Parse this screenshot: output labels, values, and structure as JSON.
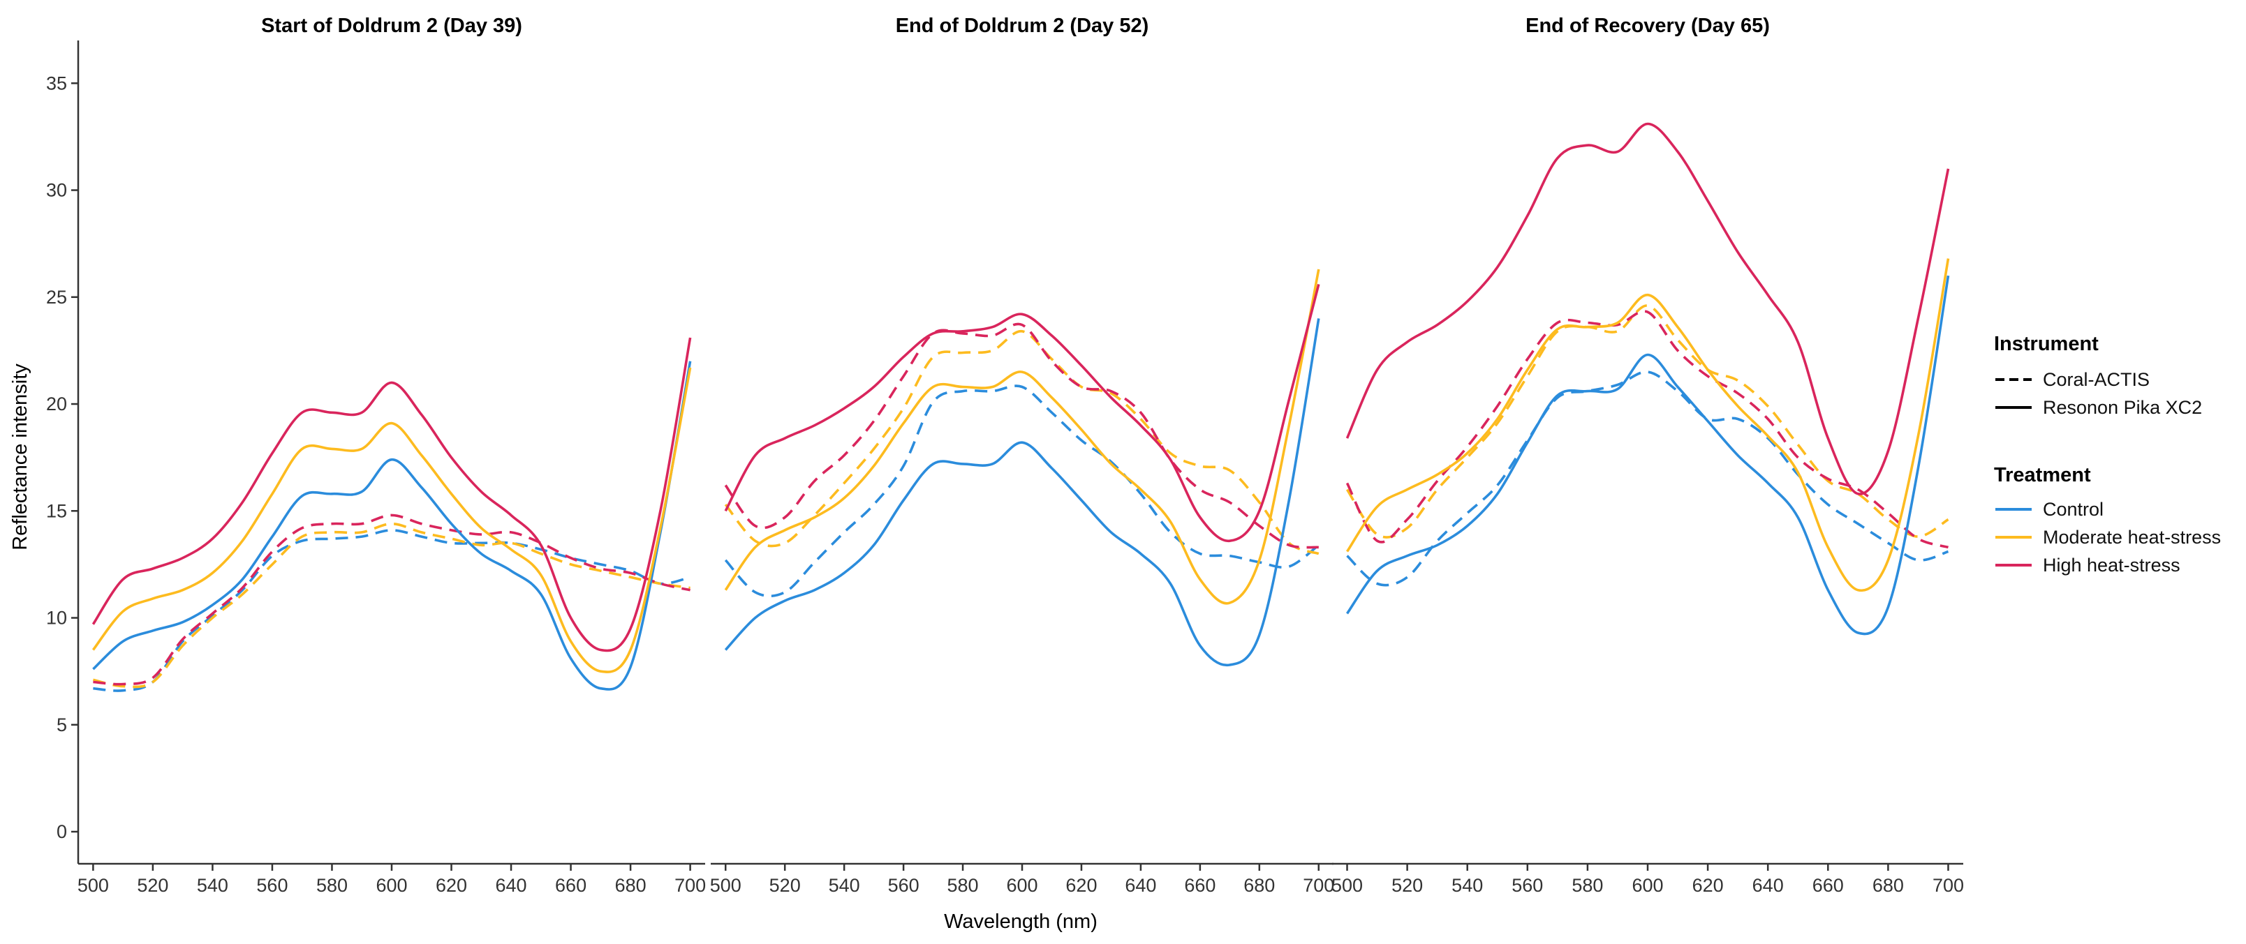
{
  "chart_data": {
    "type": "line",
    "xlabel": "Wavelength (nm)",
    "ylabel": "Reflectance intensity",
    "xlim": [
      495,
      705
    ],
    "ylim": [
      -1.5,
      37
    ],
    "xticks": [
      500,
      520,
      540,
      560,
      580,
      600,
      620,
      640,
      660,
      680,
      700
    ],
    "yticks": [
      0,
      5,
      10,
      15,
      20,
      25,
      30,
      35
    ],
    "grid": false,
    "legend_position": "right",
    "instrument_legend": {
      "title": "Instrument",
      "entries": [
        {
          "label": "Coral-ACTIS",
          "dash": "dashed"
        },
        {
          "label": "Resonon Pika XC2",
          "dash": "solid"
        }
      ]
    },
    "treatment_legend": {
      "title": "Treatment",
      "entries": [
        {
          "label": "Control",
          "color": "#2B8CDC"
        },
        {
          "label": "Moderate heat-stress",
          "color": "#FDBB1F"
        },
        {
          "label": "High heat-stress",
          "color": "#D9255C"
        }
      ]
    },
    "x": [
      500,
      510,
      520,
      530,
      540,
      550,
      560,
      570,
      580,
      590,
      600,
      610,
      620,
      630,
      640,
      650,
      660,
      670,
      680,
      690,
      700
    ],
    "panels": [
      {
        "title": "Start of Doldrum 2 (Day 39)",
        "series": [
          {
            "instrument": "Resonon Pika XC2",
            "treatment": "Control",
            "values": [
              7.6,
              8.9,
              9.4,
              9.8,
              10.6,
              11.8,
              13.8,
              15.7,
              15.8,
              15.9,
              17.4,
              16.1,
              14.4,
              13.0,
              12.2,
              11.1,
              8.1,
              6.7,
              7.7,
              14.0,
              22.0
            ]
          },
          {
            "instrument": "Resonon Pika XC2",
            "treatment": "Moderate heat-stress",
            "values": [
              8.5,
              10.3,
              10.9,
              11.3,
              12.1,
              13.6,
              15.8,
              17.9,
              17.9,
              17.9,
              19.1,
              17.6,
              15.8,
              14.2,
              13.2,
              12.0,
              8.9,
              7.5,
              8.5,
              14.2,
              21.7
            ]
          },
          {
            "instrument": "Resonon Pika XC2",
            "treatment": "High heat-stress",
            "values": [
              9.7,
              11.8,
              12.3,
              12.8,
              13.7,
              15.4,
              17.7,
              19.6,
              19.6,
              19.6,
              21.0,
              19.5,
              17.5,
              15.9,
              14.8,
              13.4,
              10.0,
              8.5,
              9.5,
              15.0,
              23.1
            ]
          },
          {
            "instrument": "Coral-ACTIS",
            "treatment": "Control",
            "values": [
              6.7,
              6.6,
              7.0,
              8.9,
              10.1,
              11.3,
              12.9,
              13.6,
              13.7,
              13.8,
              14.1,
              13.8,
              13.5,
              13.5,
              13.5,
              13.2,
              12.8,
              12.5,
              12.2,
              11.6,
              11.9
            ]
          },
          {
            "instrument": "Coral-ACTIS",
            "treatment": "Moderate heat-stress",
            "values": [
              7.1,
              6.8,
              7.0,
              8.7,
              10.0,
              11.1,
              12.5,
              13.8,
              14.0,
              14.0,
              14.4,
              14.0,
              13.7,
              13.4,
              13.5,
              13.0,
              12.5,
              12.2,
              11.9,
              11.6,
              11.4
            ]
          },
          {
            "instrument": "Coral-ACTIS",
            "treatment": "High heat-stress",
            "values": [
              7.0,
              6.9,
              7.2,
              9.0,
              10.2,
              11.4,
              13.1,
              14.2,
              14.4,
              14.4,
              14.8,
              14.4,
              14.1,
              13.9,
              14.0,
              13.5,
              12.8,
              12.3,
              12.1,
              11.6,
              11.3
            ]
          }
        ]
      },
      {
        "title": "End of Doldrum 2 (Day 52)",
        "series": [
          {
            "instrument": "Resonon Pika XC2",
            "treatment": "Control",
            "values": [
              8.5,
              10.0,
              10.8,
              11.3,
              12.1,
              13.4,
              15.5,
              17.2,
              17.2,
              17.2,
              18.2,
              17.0,
              15.5,
              14.0,
              13.0,
              11.6,
              8.7,
              7.8,
              9.2,
              15.5,
              24.0
            ]
          },
          {
            "instrument": "Resonon Pika XC2",
            "treatment": "Moderate heat-stress",
            "values": [
              11.3,
              13.3,
              14.1,
              14.7,
              15.6,
              17.1,
              19.1,
              20.8,
              20.8,
              20.8,
              21.5,
              20.3,
              18.8,
              17.2,
              16.0,
              14.5,
              11.8,
              10.7,
              12.7,
              19.0,
              26.3
            ]
          },
          {
            "instrument": "Resonon Pika XC2",
            "treatment": "High heat-stress",
            "values": [
              15.0,
              17.6,
              18.4,
              19.0,
              19.8,
              20.8,
              22.2,
              23.3,
              23.4,
              23.6,
              24.2,
              23.2,
              21.8,
              20.3,
              19.0,
              17.4,
              14.7,
              13.6,
              15.0,
              20.2,
              25.6
            ]
          },
          {
            "instrument": "Coral-ACTIS",
            "treatment": "Control",
            "values": [
              12.7,
              11.2,
              11.2,
              12.6,
              14.0,
              15.3,
              17.1,
              20.1,
              20.6,
              20.6,
              20.8,
              19.6,
              18.3,
              17.3,
              15.8,
              14.0,
              13.0,
              12.9,
              12.6,
              12.4,
              13.4
            ]
          },
          {
            "instrument": "Coral-ACTIS",
            "treatment": "Moderate heat-stress",
            "values": [
              15.3,
              13.6,
              13.5,
              14.8,
              16.3,
              17.9,
              19.8,
              22.2,
              22.4,
              22.5,
              23.4,
              22.1,
              20.8,
              20.5,
              19.3,
              17.7,
              17.1,
              16.9,
              15.4,
              13.5,
              13.0
            ]
          },
          {
            "instrument": "Coral-ACTIS",
            "treatment": "High heat-stress",
            "values": [
              16.2,
              14.3,
              14.7,
              16.4,
              17.6,
              19.2,
              21.3,
              23.3,
              23.3,
              23.2,
              23.7,
              22.0,
              20.8,
              20.6,
              19.6,
              17.4,
              16.0,
              15.4,
              14.3,
              13.4,
              13.3
            ]
          }
        ]
      },
      {
        "title": "End of Recovery (Day 65)",
        "series": [
          {
            "instrument": "Resonon Pika XC2",
            "treatment": "Control",
            "values": [
              10.2,
              12.2,
              12.9,
              13.4,
              14.3,
              15.8,
              18.2,
              20.4,
              20.6,
              20.7,
              22.3,
              20.8,
              19.2,
              17.6,
              16.3,
              14.7,
              11.3,
              9.3,
              10.5,
              17.0,
              26.0
            ]
          },
          {
            "instrument": "Resonon Pika XC2",
            "treatment": "Moderate heat-stress",
            "values": [
              13.1,
              15.2,
              16.0,
              16.7,
              17.7,
              19.3,
              21.6,
              23.5,
              23.6,
              23.8,
              25.1,
              23.6,
              21.6,
              19.9,
              18.5,
              16.8,
              13.3,
              11.3,
              12.7,
              18.5,
              26.8
            ]
          },
          {
            "instrument": "Resonon Pika XC2",
            "treatment": "High heat-stress",
            "values": [
              18.4,
              21.6,
              22.9,
              23.7,
              24.8,
              26.4,
              28.8,
              31.5,
              32.1,
              31.8,
              33.1,
              31.8,
              29.5,
              27.1,
              25.1,
              22.9,
              18.4,
              15.8,
              17.8,
              24.0,
              31.0
            ]
          },
          {
            "instrument": "Coral-ACTIS",
            "treatment": "Control",
            "values": [
              12.9,
              11.6,
              11.9,
              13.6,
              14.9,
              16.2,
              18.3,
              20.3,
              20.6,
              20.9,
              21.5,
              20.6,
              19.3,
              19.3,
              18.4,
              16.7,
              15.3,
              14.4,
              13.5,
              12.7,
              13.1
            ]
          },
          {
            "instrument": "Coral-ACTIS",
            "treatment": "Moderate heat-stress",
            "values": [
              16.0,
              13.9,
              14.2,
              16.0,
              17.5,
              19.1,
              21.3,
              23.4,
              23.6,
              23.4,
              24.6,
              23.0,
              21.6,
              21.1,
              19.9,
              18.1,
              16.4,
              15.8,
              14.6,
              13.8,
              14.6
            ]
          },
          {
            "instrument": "Coral-ACTIS",
            "treatment": "High heat-stress",
            "values": [
              16.3,
              13.6,
              14.6,
              16.4,
              18.0,
              19.9,
              22.1,
              23.8,
              23.8,
              23.7,
              24.3,
              22.5,
              21.3,
              20.5,
              19.3,
              17.5,
              16.5,
              16.0,
              14.9,
              13.7,
              13.3
            ]
          }
        ]
      }
    ]
  }
}
